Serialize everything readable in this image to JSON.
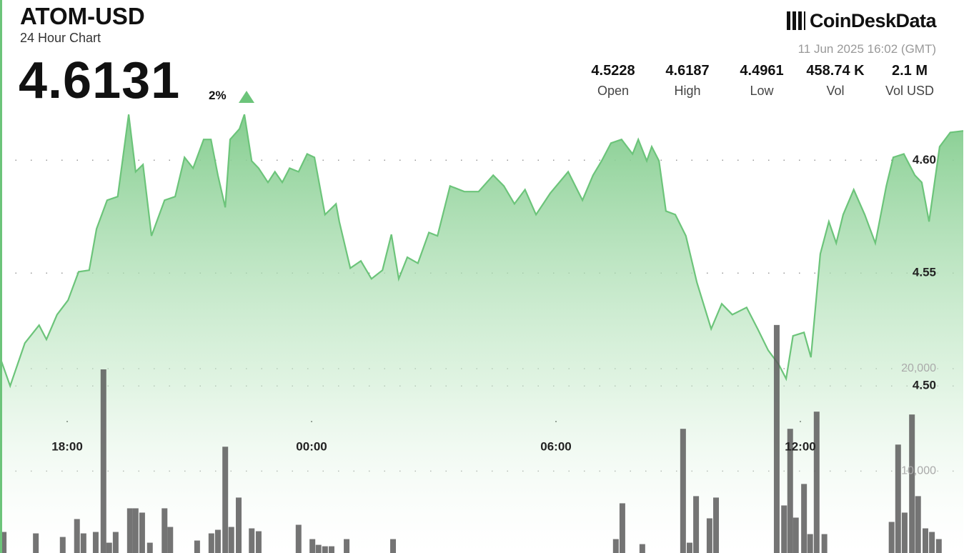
{
  "header": {
    "title": "ATOM-USD",
    "subtitle": "24 Hour Chart",
    "price": "4.6131",
    "change": "2%"
  },
  "brand": {
    "logo": "CoinDeskData",
    "timestamp": "11 Jun 2025 16:02 (GMT)"
  },
  "stats": [
    {
      "value": "4.5228",
      "label": "Open"
    },
    {
      "value": "4.6187",
      "label": "High"
    },
    {
      "value": "4.4961",
      "label": "Low"
    },
    {
      "value": "458.74 K",
      "label": "Vol"
    },
    {
      "value": "2.1 M",
      "label": "Vol USD"
    }
  ],
  "chart_data": {
    "type": "area",
    "color": "#6cc47a",
    "x": [
      16.35,
      16.6,
      16.96,
      17.31,
      17.49,
      17.75,
      18.02,
      18.28,
      18.54,
      18.72,
      18.98,
      19.24,
      19.51,
      19.68,
      19.86,
      20.07,
      20.39,
      20.65,
      20.88,
      21.09,
      21.35,
      21.53,
      21.7,
      21.88,
      22.0,
      22.23,
      22.35,
      22.53,
      22.7,
      22.93,
      23.1,
      23.28,
      23.46,
      23.68,
      23.89,
      24.07,
      24.33,
      24.6,
      24.68,
      24.95,
      25.21,
      25.47,
      25.74,
      25.96,
      26.14,
      26.35,
      26.61,
      26.88,
      27.09,
      27.4,
      27.75,
      28.1,
      28.46,
      28.72,
      28.98,
      29.24,
      29.51,
      29.86,
      30.3,
      30.65,
      30.91,
      31.12,
      31.35,
      31.61,
      31.88,
      32.02,
      32.23,
      32.35,
      32.53,
      32.7,
      32.93,
      33.19,
      33.46,
      33.81,
      34.07,
      34.33,
      34.68,
      34.95,
      35.21,
      35.47,
      35.65,
      35.82,
      36.09,
      36.26,
      36.49,
      36.7,
      36.88,
      37.05,
      37.31,
      37.58,
      37.84,
      38.11,
      38.28,
      38.54,
      38.81,
      38.98,
      39.16,
      39.42,
      39.68,
      40.0
    ],
    "values": [
      4.5127,
      4.5,
      4.519,
      4.5269,
      4.5206,
      4.5316,
      4.538,
      4.5506,
      4.5513,
      4.5696,
      4.5823,
      4.5839,
      4.6203,
      4.5949,
      4.5981,
      4.5665,
      4.5823,
      4.5839,
      4.6013,
      4.5965,
      4.6092,
      4.6092,
      4.5934,
      4.5791,
      4.6092,
      4.6139,
      4.6203,
      4.5997,
      4.5965,
      4.5902,
      4.5949,
      4.5902,
      4.5965,
      4.5949,
      4.6028,
      4.6013,
      4.5759,
      4.5807,
      4.5728,
      4.5522,
      4.5554,
      4.5475,
      4.5513,
      4.5671,
      4.5475,
      4.557,
      4.5544,
      4.568,
      4.5665,
      4.5886,
      4.5861,
      4.5861,
      4.5934,
      4.5886,
      4.5807,
      4.587,
      4.5759,
      4.5854,
      4.5949,
      4.5823,
      4.5934,
      4.5997,
      4.6076,
      4.6092,
      4.6028,
      4.6092,
      4.5997,
      4.606,
      4.5997,
      4.5775,
      4.5759,
      4.5665,
      4.5459,
      4.5253,
      4.5364,
      4.5316,
      4.5348,
      4.5253,
      4.5158,
      4.5095,
      4.5032,
      4.5222,
      4.5237,
      4.5127,
      4.5585,
      4.5728,
      4.5633,
      4.5759,
      4.587,
      4.5759,
      4.5633,
      4.5886,
      4.6013,
      4.6028,
      4.5934,
      4.5902,
      4.5728,
      4.606,
      4.6123,
      4.613
    ],
    "volume": {
      "color": "#5c5c5c",
      "axis": "y2",
      "x": [
        16.44,
        17.23,
        17.89,
        18.24,
        18.4,
        18.7,
        18.89,
        19.03,
        19.19,
        19.54,
        19.68,
        19.84,
        20.03,
        20.39,
        20.53,
        21.19,
        21.54,
        21.7,
        21.88,
        22.03,
        22.21,
        22.53,
        22.7,
        23.68,
        24.02,
        24.17,
        24.33,
        24.49,
        24.86,
        26.0,
        31.47,
        31.63,
        32.12,
        33.12,
        33.28,
        33.44,
        33.77,
        33.93,
        35.42,
        35.6,
        35.75,
        35.89,
        36.09,
        36.24,
        36.4,
        36.59,
        38.24,
        38.4,
        38.56,
        38.74,
        38.89,
        39.07,
        39.23,
        39.4
      ],
      "values": [
        4056,
        3916,
        3566,
        5315,
        3916,
        4056,
        19930,
        3007,
        4056,
        6364,
        6364,
        5944,
        3007,
        6364,
        4545,
        3217,
        3916,
        4266,
        12378,
        4545,
        7413,
        4406,
        4126,
        4755,
        3357,
        2797,
        2657,
        2657,
        3357,
        3357,
        3357,
        6853,
        2867,
        14126,
        3007,
        7552,
        5385,
        7413,
        24266,
        6643,
        14126,
        5455,
        8741,
        3846,
        15804,
        3846,
        5035,
        12587,
        5944,
        15524,
        7552,
        4406,
        4056,
        3357
      ]
    },
    "xlim": [
      16.35,
      40.0
    ],
    "xticks": [
      {
        "value": 18,
        "label": "18:00"
      },
      {
        "value": 24,
        "label": "00:00"
      },
      {
        "value": 30,
        "label": "06:00"
      },
      {
        "value": 36,
        "label": "12:00"
      }
    ],
    "ylim": [
      4.426,
      4.671
    ],
    "yticks": [
      {
        "value": 4.5,
        "label": "4.50"
      },
      4.55,
      {
        "value": 4.6,
        "label": "4.60"
      }
    ],
    "y2lim": [
      2000,
      56000
    ],
    "y2ticks": [
      {
        "value": 10000,
        "label": "10,000"
      },
      {
        "value": 20000,
        "label": "20,000"
      }
    ],
    "grid": true
  }
}
